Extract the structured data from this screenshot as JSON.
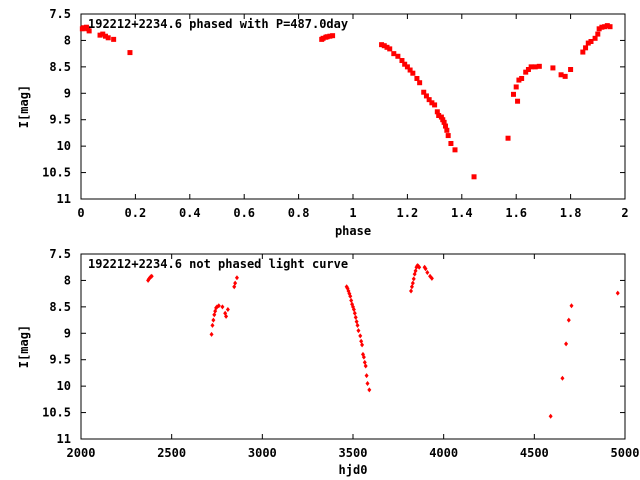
{
  "chart_data": [
    {
      "type": "scatter",
      "title": "192212+2234.6 phased with P=487.0day",
      "xlabel": "phase",
      "ylabel": "I[mag]",
      "xlim": [
        0,
        2
      ],
      "ylim": [
        7.5,
        11
      ],
      "y_inverted": true,
      "xticks": [
        "0",
        "0.2",
        "0.4",
        "0.6",
        "0.8",
        "1",
        "1.2",
        "1.4",
        "1.6",
        "1.8",
        "2"
      ],
      "yticks": [
        "7.5",
        "8",
        "8.5",
        "9",
        "9.5",
        "10",
        "10.5",
        "11"
      ],
      "grid": false,
      "marker_color": "#ff0000",
      "marker": "square",
      "series": [
        {
          "points": [
            [
              0.005,
              7.78
            ],
            [
              0.01,
              7.76
            ],
            [
              0.015,
              7.77
            ],
            [
              0.02,
              7.75
            ],
            [
              0.025,
              7.78
            ],
            [
              0.03,
              7.82
            ],
            [
              0.07,
              7.9
            ],
            [
              0.08,
              7.88
            ],
            [
              0.09,
              7.92
            ],
            [
              0.1,
              7.95
            ],
            [
              0.12,
              7.98
            ],
            [
              0.18,
              8.23
            ],
            [
              0.885,
              7.98
            ],
            [
              0.89,
              7.96
            ],
            [
              0.9,
              7.94
            ],
            [
              0.905,
              7.93
            ],
            [
              0.915,
              7.92
            ],
            [
              0.925,
              7.91
            ],
            [
              1.105,
              8.08
            ],
            [
              1.115,
              8.1
            ],
            [
              1.125,
              8.13
            ],
            [
              1.135,
              8.16
            ],
            [
              1.15,
              8.25
            ],
            [
              1.165,
              8.3
            ],
            [
              1.18,
              8.38
            ],
            [
              1.19,
              8.45
            ],
            [
              1.2,
              8.5
            ],
            [
              1.21,
              8.56
            ],
            [
              1.22,
              8.62
            ],
            [
              1.235,
              8.72
            ],
            [
              1.245,
              8.8
            ],
            [
              1.26,
              8.98
            ],
            [
              1.27,
              9.05
            ],
            [
              1.28,
              9.12
            ],
            [
              1.29,
              9.18
            ],
            [
              1.3,
              9.22
            ],
            [
              1.31,
              9.35
            ],
            [
              1.315,
              9.42
            ],
            [
              1.325,
              9.45
            ],
            [
              1.33,
              9.5
            ],
            [
              1.335,
              9.55
            ],
            [
              1.34,
              9.62
            ],
            [
              1.345,
              9.7
            ],
            [
              1.35,
              9.8
            ],
            [
              1.36,
              9.95
            ],
            [
              1.375,
              10.07
            ],
            [
              1.445,
              10.58
            ],
            [
              1.57,
              9.85
            ],
            [
              1.59,
              9.02
            ],
            [
              1.6,
              8.88
            ],
            [
              1.605,
              9.15
            ],
            [
              1.61,
              8.75
            ],
            [
              1.62,
              8.72
            ],
            [
              1.635,
              8.6
            ],
            [
              1.645,
              8.55
            ],
            [
              1.655,
              8.5
            ],
            [
              1.67,
              8.5
            ],
            [
              1.685,
              8.49
            ],
            [
              1.735,
              8.52
            ],
            [
              1.765,
              8.65
            ],
            [
              1.78,
              8.68
            ],
            [
              1.8,
              8.55
            ],
            [
              1.845,
              8.22
            ],
            [
              1.855,
              8.14
            ],
            [
              1.865,
              8.05
            ],
            [
              1.875,
              8.02
            ],
            [
              1.89,
              7.96
            ],
            [
              1.9,
              7.88
            ],
            [
              1.905,
              7.78
            ],
            [
              1.915,
              7.75
            ],
            [
              1.925,
              7.74
            ],
            [
              1.935,
              7.72
            ],
            [
              1.945,
              7.74
            ]
          ]
        }
      ]
    },
    {
      "type": "scatter",
      "title": "192212+2234.6 not phased light curve",
      "xlabel": "hjd0",
      "ylabel": "I[mag]",
      "xlim": [
        2000,
        5000
      ],
      "ylim": [
        7.5,
        11
      ],
      "y_inverted": true,
      "xticks": [
        "2000",
        "2500",
        "3000",
        "3500",
        "4000",
        "4500",
        "5000"
      ],
      "yticks": [
        "7.5",
        "8",
        "8.5",
        "9",
        "9.5",
        "10",
        "10.5",
        "11"
      ],
      "grid": false,
      "marker_color": "#ff0000",
      "marker": "diamond",
      "series": [
        {
          "points": [
            [
              2370,
              8.0
            ],
            [
              2375,
              7.97
            ],
            [
              2380,
              7.95
            ],
            [
              2385,
              7.93
            ],
            [
              2390,
              7.92
            ],
            [
              2720,
              9.02
            ],
            [
              2725,
              8.85
            ],
            [
              2730,
              8.75
            ],
            [
              2735,
              8.65
            ],
            [
              2740,
              8.58
            ],
            [
              2745,
              8.52
            ],
            [
              2750,
              8.5
            ],
            [
              2760,
              8.48
            ],
            [
              2780,
              8.5
            ],
            [
              2795,
              8.62
            ],
            [
              2800,
              8.68
            ],
            [
              2810,
              8.55
            ],
            [
              2845,
              8.12
            ],
            [
              2850,
              8.05
            ],
            [
              2860,
              7.95
            ],
            [
              3465,
              8.12
            ],
            [
              3470,
              8.15
            ],
            [
              3475,
              8.2
            ],
            [
              3480,
              8.25
            ],
            [
              3485,
              8.3
            ],
            [
              3490,
              8.38
            ],
            [
              3495,
              8.45
            ],
            [
              3500,
              8.5
            ],
            [
              3505,
              8.55
            ],
            [
              3510,
              8.62
            ],
            [
              3515,
              8.7
            ],
            [
              3520,
              8.78
            ],
            [
              3525,
              8.85
            ],
            [
              3530,
              8.95
            ],
            [
              3540,
              9.05
            ],
            [
              3545,
              9.15
            ],
            [
              3550,
              9.22
            ],
            [
              3555,
              9.4
            ],
            [
              3560,
              9.45
            ],
            [
              3565,
              9.55
            ],
            [
              3570,
              9.62
            ],
            [
              3575,
              9.8
            ],
            [
              3580,
              9.95
            ],
            [
              3590,
              10.07
            ],
            [
              3820,
              8.2
            ],
            [
              3825,
              8.12
            ],
            [
              3830,
              8.05
            ],
            [
              3835,
              7.97
            ],
            [
              3840,
              7.88
            ],
            [
              3845,
              7.82
            ],
            [
              3850,
              7.75
            ],
            [
              3855,
              7.72
            ],
            [
              3860,
              7.73
            ],
            [
              3865,
              7.75
            ],
            [
              3895,
              7.75
            ],
            [
              3900,
              7.78
            ],
            [
              3910,
              7.85
            ],
            [
              3925,
              7.92
            ],
            [
              3935,
              7.96
            ],
            [
              4590,
              10.57
            ],
            [
              4655,
              9.85
            ],
            [
              4675,
              9.2
            ],
            [
              4690,
              8.75
            ],
            [
              4705,
              8.48
            ],
            [
              4960,
              8.24
            ]
          ]
        }
      ]
    }
  ]
}
